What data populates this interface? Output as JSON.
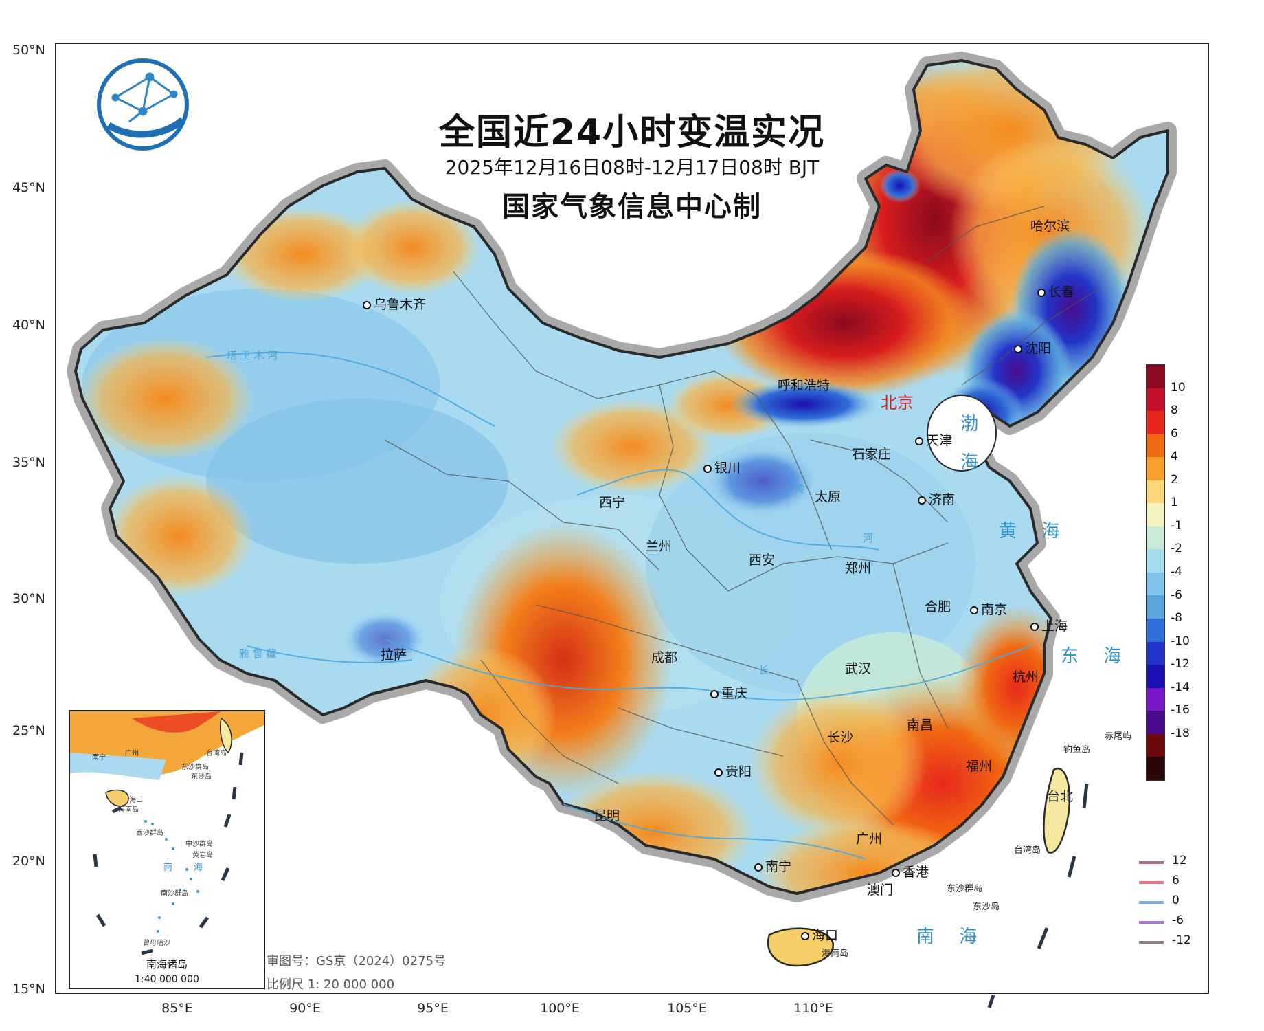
{
  "header": {
    "title": "全国近24小时变温实况",
    "subtitle": "2025年12月16日08时-12月17日08时 BJT",
    "maker": "国家气象信息中心制"
  },
  "axes": {
    "lat_labels": [
      "50°N",
      "45°N",
      "40°N",
      "35°N",
      "30°N",
      "25°N",
      "20°N",
      "15°N"
    ],
    "lon_labels": [
      "85°E",
      "90°E",
      "95°E",
      "100°E",
      "105°E",
      "110°E"
    ]
  },
  "cities": {
    "urumqi": "乌鲁木齐",
    "harbin": "哈尔滨",
    "changchun": "长春",
    "shenyang": "沈阳",
    "hohhot": "呼和浩特",
    "beijing": "北京",
    "tianjin": "天津",
    "shijiazhuang": "石家庄",
    "yinchuan": "银川",
    "taiyuan": "太原",
    "jinan": "济南",
    "xining": "西宁",
    "lanzhou": "兰州",
    "xian": "西安",
    "zhengzhou": "郑州",
    "hefei": "合肥",
    "nanjing": "南京",
    "shanghai": "上海",
    "lhasa": "拉萨",
    "chengdu": "成都",
    "wuhan": "武汉",
    "hangzhou": "杭州",
    "chongqing": "重庆",
    "nanchang": "南昌",
    "changsha": "长沙",
    "fuzhou": "福州",
    "guiyang": "贵阳",
    "taipei": "台北",
    "kunming": "昆明",
    "guangzhou": "广州",
    "nanning": "南宁",
    "hongkong": "香港",
    "macau": "澳门",
    "haikou": "海口"
  },
  "islands": {
    "diaoyu": "钓鱼岛",
    "chiwei": "赤尾屿",
    "taiwan": "台湾岛",
    "dongsha_group": "东沙群岛",
    "dongsha": "东沙岛",
    "hainan": "海南岛"
  },
  "seas": {
    "bohai_1": "渤",
    "bohai_2": "海",
    "huanghai": "黄 海",
    "donghai": "东 海",
    "nanhai": "南 海"
  },
  "rivers": {
    "huanghe_1": "黄",
    "huanghe_2": "河",
    "changjiang": "长",
    "tarim": "塔 里 木 河",
    "yarlung": "雅 鲁 藏"
  },
  "legend": {
    "labels": [
      "10",
      "8",
      "6",
      "4",
      "2",
      "1",
      "-1",
      "-2",
      "-4",
      "-6",
      "-8",
      "-10",
      "-12",
      "-14",
      "-16",
      "-18"
    ],
    "colors": [
      "#8b0a1f",
      "#c4102a",
      "#e8281c",
      "#f06a12",
      "#f7a12b",
      "#fbd67a",
      "#f5f3c2",
      "#c9ecd8",
      "#a7dcef",
      "#7fc4ea",
      "#5aa6dc",
      "#2f6fd8",
      "#2234c8",
      "#1a0fb0",
      "#7a18c9",
      "#4a0a8c",
      "#6a0a0a",
      "#2a0606"
    ]
  },
  "contour_legend": [
    {
      "label": "12",
      "color": "#b56b86"
    },
    {
      "label": "6",
      "color": "#e57a85"
    },
    {
      "label": "0",
      "color": "#7aaee0"
    },
    {
      "label": "-6",
      "color": "#a47bcf"
    },
    {
      "label": "-12",
      "color": "#8c7d88"
    }
  ],
  "inset": {
    "title": "南海诸岛",
    "scale": "1:40 000 000",
    "labels": {
      "nanning": "南宁",
      "guangzhou": "广州",
      "taiwan": "台湾岛",
      "dongsha_group": "东沙群岛",
      "dongsha": "东沙岛",
      "haikou": "海口",
      "hainan": "海南岛",
      "xisha": "西沙群岛",
      "zhongsha": "中沙群岛",
      "huangyan": "黄岩岛",
      "nansha": "南沙群岛",
      "zengmu": "曾母暗沙",
      "sea_1": "南",
      "sea_2": "海"
    }
  },
  "footer": {
    "approval": "审图号：GS京（2024）0275号",
    "scale": "比例尺  1:  20 000 000"
  }
}
